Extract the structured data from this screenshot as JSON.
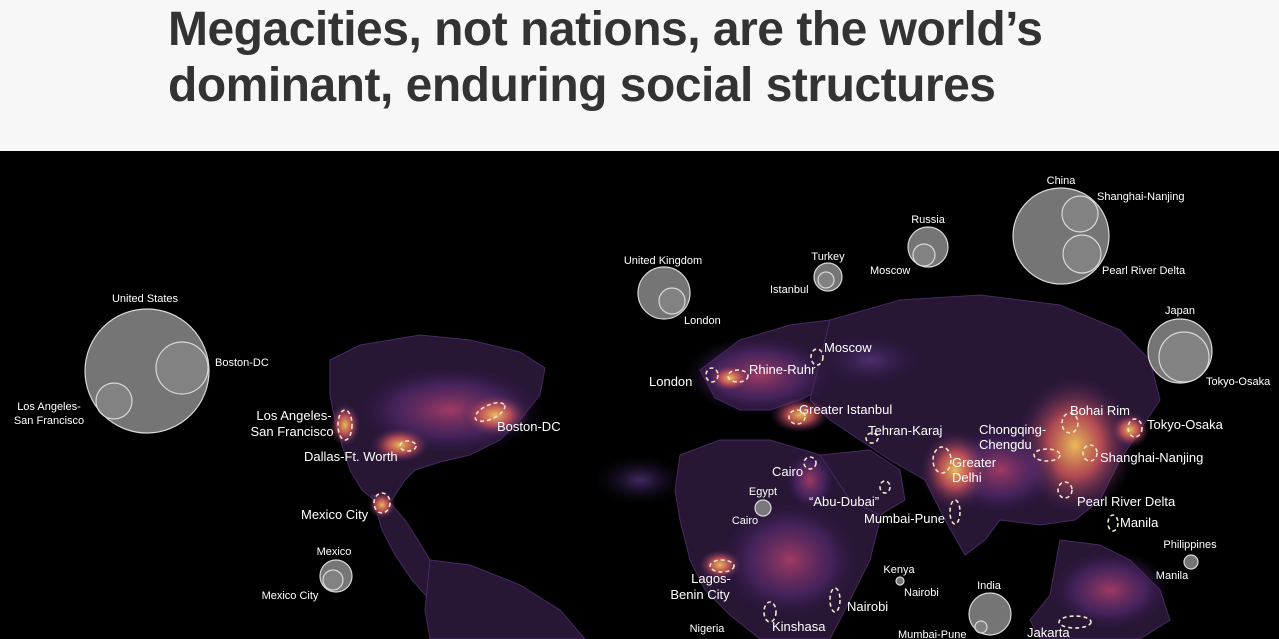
{
  "headline": {
    "line1": "Megacities, not nations, are the world’s",
    "line2": "dominant, enduring social structures"
  },
  "map": {
    "colors": {
      "background": "#000000",
      "glow_hot": "#f2b84b",
      "glow_mid": "#c2445a",
      "glow_cool": "#4a2a6e",
      "circle_fill": "#8a8a8a",
      "circle_stroke": "#d9d9d9"
    },
    "bubble_labels": {
      "united_states": "United States",
      "boston_dc": "Boston-DC",
      "la_sf_line1": "Los Angeles-",
      "la_sf_line2": "San Francisco",
      "mexico": "Mexico",
      "mexico_city": "Mexico City",
      "united_kingdom": "United Kingdom",
      "london": "London",
      "turkey": "Turkey",
      "istanbul": "Istanbul",
      "russia": "Russia",
      "moscow": "Moscow",
      "china": "China",
      "shanghai_nanjing": "Shanghai-Nanjing",
      "pearl_river_delta": "Pearl River Delta",
      "japan": "Japan",
      "tokyo_osaka": "Tokyo-Osaka",
      "egypt": "Egypt",
      "cairo": "Cairo",
      "kenya": "Kenya",
      "nairobi": "Nairobi",
      "india": "India",
      "mumbai_pune": "Mumbai-Pune",
      "philippines": "Philippines",
      "manila": "Manila",
      "nigeria": "Nigeria"
    },
    "city_labels": {
      "la_sf_line1": "Los Angeles-",
      "la_sf_line2": "San Francisco",
      "dallas": "Dallas-Ft. Worth",
      "boston_dc": "Boston-DC",
      "mexico_city": "Mexico City",
      "london": "London",
      "rhine_ruhr": "Rhine-Ruhr",
      "moscow": "Moscow",
      "greater_istanbul": "Greater Istanbul",
      "tehran_karaj": "Tehran-Karaj",
      "cairo": "Cairo",
      "abu_dubai": "“Abu-Dubai”",
      "mumbai_pune": "Mumbai-Pune",
      "greater_delhi_line1": "Greater",
      "greater_delhi_line2": "Delhi",
      "chongqing_line1": "Chongqing-",
      "chongqing_line2": "Chengdu",
      "bohai_rim": "Bohai Rim",
      "tokyo_osaka": "Tokyo-Osaka",
      "shanghai_nanjing": "Shanghai-Nanjing",
      "pearl_river_delta": "Pearl River Delta",
      "manila": "Manila",
      "lagos_line1": "Lagos-",
      "lagos_line2": "Benin City",
      "kinshasa": "Kinshasa",
      "nairobi": "Nairobi",
      "jakarta": "Jakarta"
    }
  }
}
